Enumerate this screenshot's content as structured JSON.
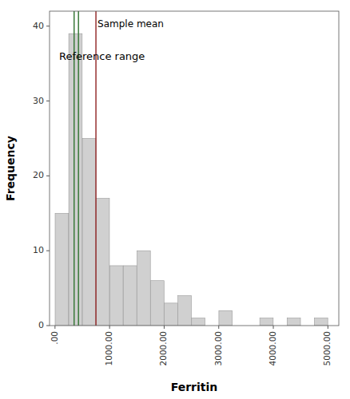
{
  "chart_data": {
    "type": "histogram",
    "title": "",
    "xlabel": "Ferritin",
    "ylabel": "Frequency",
    "bins": [
      0,
      250,
      500,
      750,
      1000,
      1250,
      1500,
      1750,
      2000,
      2250,
      2500,
      2750,
      3000,
      3250,
      3500,
      3750,
      4000,
      4250,
      4500,
      4750,
      5000
    ],
    "values": [
      15,
      39,
      25,
      17,
      8,
      8,
      10,
      6,
      3,
      4,
      1,
      0,
      2,
      0,
      0,
      1,
      0,
      1,
      0,
      1
    ],
    "color": "#d0d0d0",
    "xlim": [
      -100,
      5200
    ],
    "ylim": [
      0,
      42
    ],
    "xticks": [
      {
        "value": 0,
        "label": ".00"
      },
      {
        "value": 1000,
        "label": "1000.00"
      },
      {
        "value": 2000,
        "label": "2000.00"
      },
      {
        "value": 3000,
        "label": "3000.00"
      },
      {
        "value": 4000,
        "label": "4000.00"
      },
      {
        "value": 5000,
        "label": "5000.00"
      }
    ],
    "yticks": [
      0,
      10,
      20,
      30,
      40
    ],
    "vlines": [
      {
        "x": 350,
        "color": "#3a7a3a"
      },
      {
        "x": 430,
        "color": "#3a7a3a"
      },
      {
        "x": 750,
        "color": "#963030"
      }
    ],
    "annotations": [
      {
        "text": "Sample mean",
        "x": 780,
        "y": 40.8
      },
      {
        "text": "Reference range",
        "x": 75,
        "y": 36.5
      }
    ],
    "grid": false
  }
}
